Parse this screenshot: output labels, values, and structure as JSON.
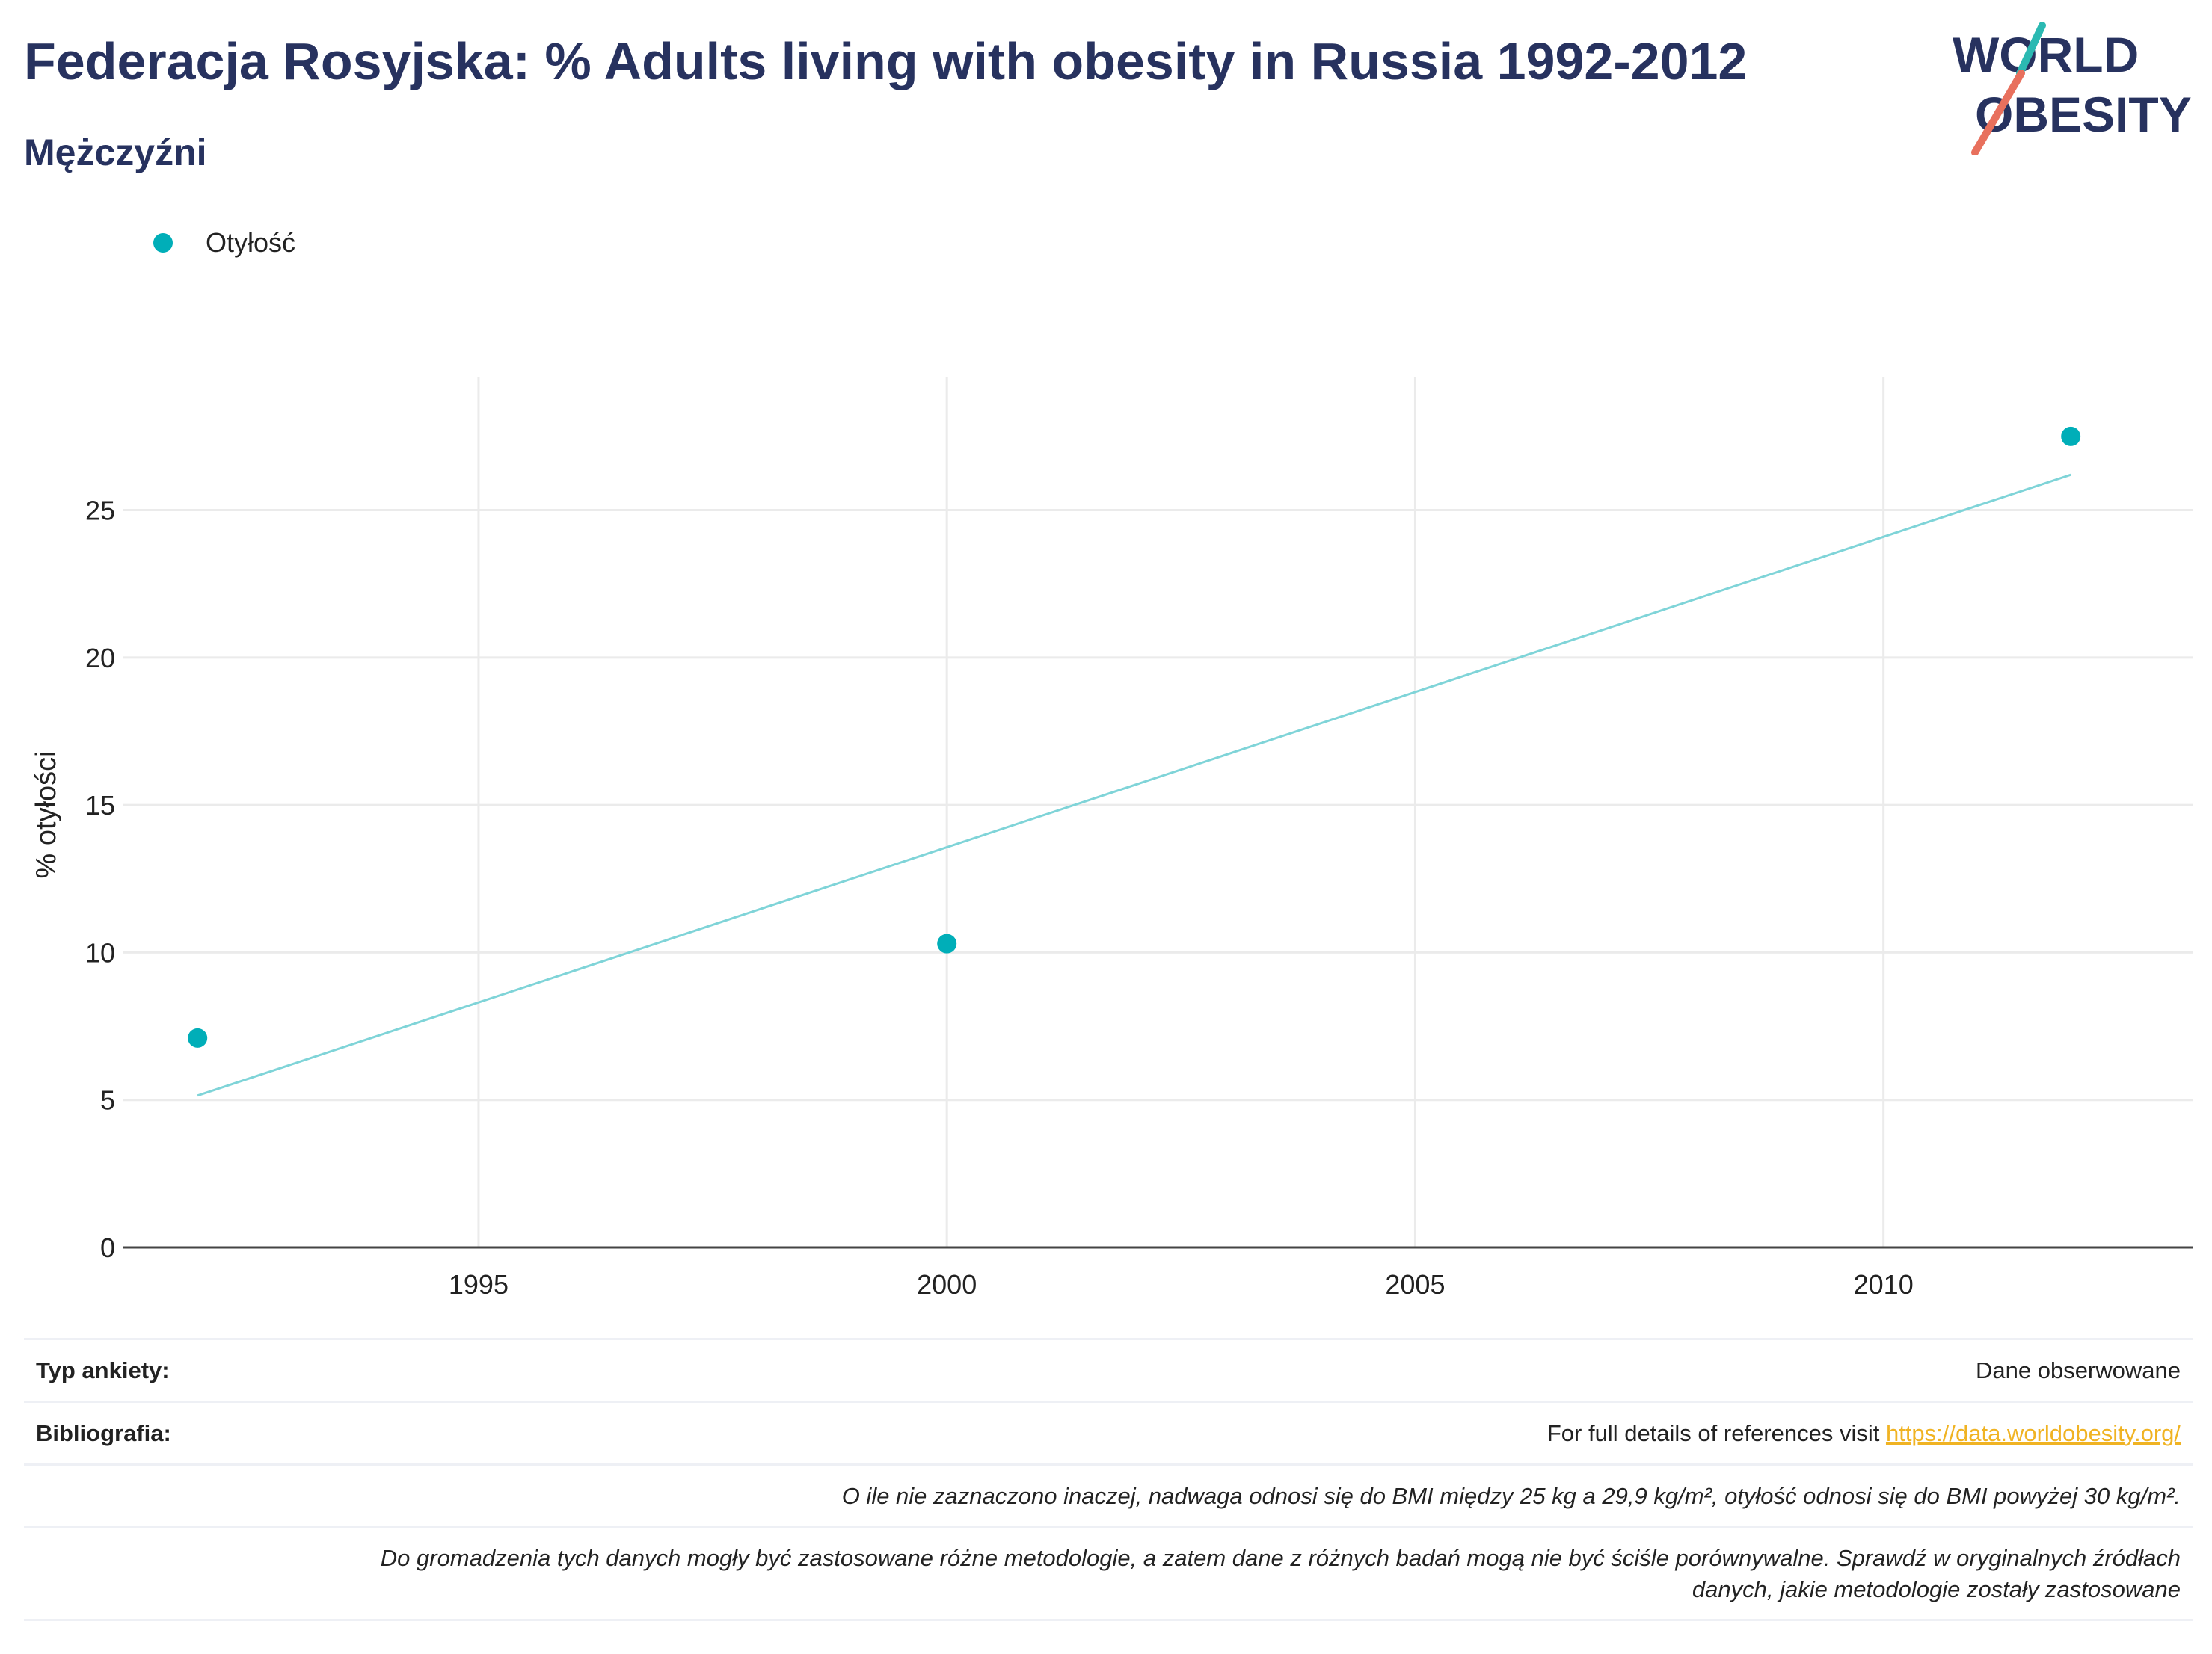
{
  "header": {
    "title": "Federacja Rosyjska: % Adults living with obesity in Russia 1992-2012",
    "subtitle": "Mężczyźni"
  },
  "logo": {
    "line1": "WORLD",
    "line2": "OBESITY",
    "color_text": "#27325f",
    "color_teal": "#2bb9b2",
    "color_coral": "#e8705d"
  },
  "legend": {
    "label": "Otyłość",
    "color": "#00aeb8"
  },
  "chart_data": {
    "type": "scatter",
    "x": [
      1992,
      2000,
      2012
    ],
    "y": [
      7.1,
      10.3,
      27.5
    ],
    "trendline": {
      "x": [
        1992,
        2012
      ],
      "y": [
        5.15,
        26.2
      ],
      "color": "#7fd4d8"
    },
    "marker_color": "#00aeb8",
    "xlabel": "",
    "ylabel": "% otyłości",
    "xlim": [
      1991.2,
      2013.3
    ],
    "ylim": [
      0,
      29.5
    ],
    "xticks": [
      1995,
      2000,
      2005,
      2010
    ],
    "yticks": [
      0,
      5,
      10,
      15,
      20,
      25
    ],
    "grid": true,
    "legend_position": "top-left"
  },
  "footer": {
    "survey_label": "Typ ankiety:",
    "survey_value": "Dane obserwowane",
    "bib_label": "Bibliografia:",
    "bib_text": "For full details of references visit ",
    "bib_link": "https://data.worldobesity.org/",
    "note1": "O ile nie zaznaczono inaczej, nadwaga odnosi się do BMI między 25 kg a 29,9 kg/m², otyłość odnosi się do BMI powyżej 30 kg/m².",
    "note2_line1": "Do gromadzenia tych danych mogły być zastosowane różne metodologie, a zatem dane z różnych badań mogą nie być ściśle porównywalne. Sprawdź w oryginalnych źródłach",
    "note2_line2": "danych, jakie metodologie zostały zastosowane"
  }
}
